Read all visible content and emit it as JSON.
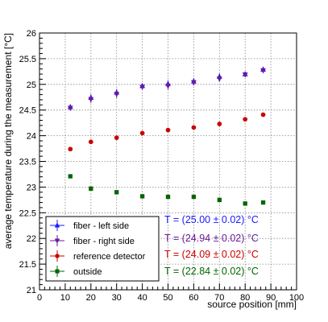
{
  "chart_data": {
    "type": "scatter",
    "xlabel": "source position [mm]",
    "ylabel": "average temperature during the measurement [°C]",
    "xlim": [
      0,
      100
    ],
    "ylim": [
      21,
      26
    ],
    "x_ticks": [
      "0",
      "10",
      "20",
      "30",
      "40",
      "50",
      "60",
      "70",
      "80",
      "90",
      "100"
    ],
    "y_ticks": [
      "21",
      "21.5",
      "22",
      "22.5",
      "23",
      "23.5",
      "24",
      "24.5",
      "25",
      "25.5",
      "26"
    ],
    "grid": true,
    "legend_position": "bottom-left",
    "series": [
      {
        "name": "fiber - left side",
        "marker": "triangle-up",
        "color": "#1a1aff",
        "x": [
          12,
          20,
          30,
          40,
          50,
          60,
          70,
          80,
          87
        ],
        "y": [
          24.56,
          24.74,
          24.84,
          24.97,
          25.01,
          25.06,
          25.15,
          25.2,
          25.29
        ],
        "err": [
          0.05,
          0.07,
          0.07,
          0.05,
          0.07,
          0.06,
          0.06,
          0.04,
          0.05
        ]
      },
      {
        "name": "fiber - right side",
        "marker": "triangle-down",
        "color": "#6a1a9a",
        "x": [
          12,
          20,
          30,
          40,
          50,
          60,
          70,
          80,
          87
        ],
        "y": [
          24.54,
          24.71,
          24.81,
          24.95,
          24.97,
          25.04,
          25.11,
          25.19,
          25.27
        ],
        "err": [
          0.05,
          0.07,
          0.07,
          0.05,
          0.07,
          0.06,
          0.06,
          0.04,
          0.05
        ]
      },
      {
        "name": "reference detector",
        "marker": "circle",
        "color": "#cc0000",
        "x": [
          12,
          20,
          30,
          40,
          50,
          60,
          70,
          80,
          87
        ],
        "y": [
          23.74,
          23.88,
          23.96,
          24.05,
          24.11,
          24.16,
          24.23,
          24.32,
          24.41
        ],
        "err": [
          0.02,
          0.02,
          0.02,
          0.02,
          0.02,
          0.02,
          0.02,
          0.02,
          0.02
        ]
      },
      {
        "name": "outside",
        "marker": "square",
        "color": "#006600",
        "x": [
          12,
          20,
          30,
          40,
          50,
          60,
          70,
          80,
          87
        ],
        "y": [
          23.21,
          22.97,
          22.9,
          22.82,
          22.81,
          22.81,
          22.75,
          22.68,
          22.7
        ],
        "err": [
          0.02,
          0.02,
          0.02,
          0.02,
          0.02,
          0.02,
          0.02,
          0.02,
          0.02
        ]
      }
    ],
    "annotations": [
      {
        "text": "T = (25.00 ± 0.02) °C",
        "color": "#1a1aff"
      },
      {
        "text": "T = (24.94 ± 0.02) °C",
        "color": "#6a1a9a"
      },
      {
        "text": "T = (24.09 ± 0.02) °C",
        "color": "#cc0000"
      },
      {
        "text": "T = (22.84 ± 0.02) °C",
        "color": "#006600"
      }
    ]
  }
}
